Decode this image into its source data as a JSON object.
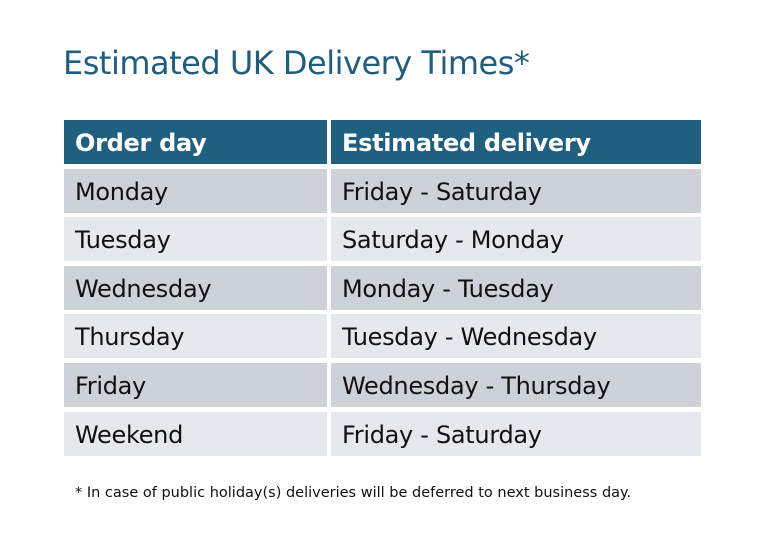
{
  "title": "Estimated UK Delivery Times*",
  "table": {
    "headers": [
      "Order day",
      "Estimated delivery"
    ],
    "rows": [
      [
        "Monday",
        "Friday - Saturday"
      ],
      [
        "Tuesday",
        "Saturday - Monday"
      ],
      [
        "Wednesday",
        "Monday - Tuesday"
      ],
      [
        "Thursday",
        "Tuesday - Wednesday"
      ],
      [
        "Friday",
        "Wednesday - Thursday"
      ],
      [
        "Weekend",
        "Friday - Saturday"
      ]
    ]
  },
  "footnote": "* In case of public holiday(s) deliveries will be deferred to next business day.",
  "colors": {
    "header": "#1F5F80",
    "row_dark": "#CDD1D8",
    "row_light": "#E5E8EC",
    "title": "#1F5E7E"
  }
}
